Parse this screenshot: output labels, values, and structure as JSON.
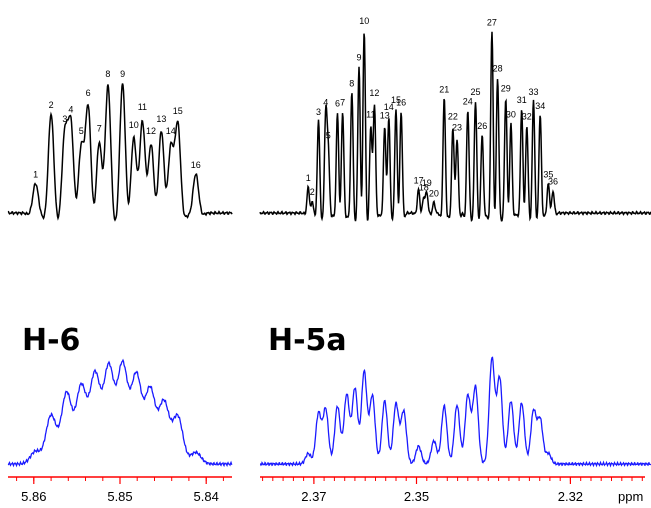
{
  "colors": {
    "top_trace": "#000000",
    "bottom_trace": "#1a1aff",
    "axis": "#ff0000"
  },
  "chart_data": [
    {
      "type": "line",
      "subtitle": "H-6",
      "xlabel": "",
      "ylabel": "",
      "x_reversed": true,
      "xlim": [
        5.863,
        5.837
      ],
      "xticks": [
        {
          "value": 5.86,
          "label": "5.86"
        },
        {
          "value": 5.85,
          "label": "5.85"
        },
        {
          "value": 5.84,
          "label": "5.84"
        }
      ],
      "series": [
        {
          "role": "resolution-enhanced",
          "peaks": [
            {
              "label": "1",
              "ppm": 5.8598,
              "height": 0.25
            },
            {
              "label": "2",
              "ppm": 5.858,
              "height": 0.84
            },
            {
              "label": "3",
              "ppm": 5.8564,
              "height": 0.72
            },
            {
              "label": "4",
              "ppm": 5.8557,
              "height": 0.8
            },
            {
              "label": "5",
              "ppm": 5.8545,
              "height": 0.62
            },
            {
              "label": "6",
              "ppm": 5.8537,
              "height": 0.94
            },
            {
              "label": "7",
              "ppm": 5.8524,
              "height": 0.64
            },
            {
              "label": "8",
              "ppm": 5.8514,
              "height": 1.1
            },
            {
              "label": "9",
              "ppm": 5.8497,
              "height": 1.1
            },
            {
              "label": "10",
              "ppm": 5.8484,
              "height": 0.67
            },
            {
              "label": "11",
              "ppm": 5.8474,
              "height": 0.82
            },
            {
              "label": "12",
              "ppm": 5.8464,
              "height": 0.62
            },
            {
              "label": "13",
              "ppm": 5.8452,
              "height": 0.72
            },
            {
              "label": "14",
              "ppm": 5.8441,
              "height": 0.62
            },
            {
              "label": "15",
              "ppm": 5.8433,
              "height": 0.79
            },
            {
              "label": "16",
              "ppm": 5.8412,
              "height": 0.33
            }
          ]
        },
        {
          "role": "experimental",
          "peaks": [
            {
              "ppm": 5.8598,
              "height": 0.12
            },
            {
              "ppm": 5.858,
              "height": 0.46
            },
            {
              "ppm": 5.8562,
              "height": 0.67
            },
            {
              "ppm": 5.8545,
              "height": 0.73
            },
            {
              "ppm": 5.8529,
              "height": 0.84
            },
            {
              "ppm": 5.8513,
              "height": 0.91
            },
            {
              "ppm": 5.8497,
              "height": 0.93
            },
            {
              "ppm": 5.8481,
              "height": 0.83
            },
            {
              "ppm": 5.8465,
              "height": 0.7
            },
            {
              "ppm": 5.8449,
              "height": 0.58
            },
            {
              "ppm": 5.8433,
              "height": 0.45
            },
            {
              "ppm": 5.8412,
              "height": 0.11
            }
          ]
        }
      ]
    },
    {
      "type": "line",
      "subtitle": "H-5a",
      "xlabel": "ppm",
      "ylabel": "",
      "x_reversed": true,
      "xlim": [
        2.3805,
        2.3043
      ],
      "xticks": [
        {
          "value": 2.37,
          "label": "2.37"
        },
        {
          "value": 2.35,
          "label": "2.35"
        },
        {
          "value": 2.32,
          "label": "2.32"
        }
      ],
      "series": [
        {
          "role": "resolution-enhanced",
          "peaks": [
            {
              "label": "1",
              "ppm": 2.3711,
              "height": 0.22
            },
            {
              "label": "2",
              "ppm": 2.3703,
              "height": 0.1
            },
            {
              "label": "3",
              "ppm": 2.3691,
              "height": 0.78
            },
            {
              "label": "4",
              "ppm": 2.3677,
              "height": 0.86
            },
            {
              "label": "5",
              "ppm": 2.3672,
              "height": 0.58
            },
            {
              "label": "6",
              "ppm": 2.3654,
              "height": 0.85
            },
            {
              "label": "7",
              "ppm": 2.3644,
              "height": 0.86
            },
            {
              "label": "8",
              "ppm": 2.3626,
              "height": 1.02
            },
            {
              "label": "9",
              "ppm": 2.3612,
              "height": 1.24
            },
            {
              "label": "10",
              "ppm": 2.3602,
              "height": 1.55
            },
            {
              "label": "11",
              "ppm": 2.3589,
              "height": 0.76
            },
            {
              "label": "12",
              "ppm": 2.3582,
              "height": 0.94
            },
            {
              "label": "13",
              "ppm": 2.3562,
              "height": 0.75
            },
            {
              "label": "14",
              "ppm": 2.3554,
              "height": 0.82
            },
            {
              "label": "15",
              "ppm": 2.354,
              "height": 0.88
            },
            {
              "label": "16",
              "ppm": 2.353,
              "height": 0.86
            },
            {
              "label": "17",
              "ppm": 2.3496,
              "height": 0.2
            },
            {
              "label": "18",
              "ppm": 2.3486,
              "height": 0.14
            },
            {
              "label": "19",
              "ppm": 2.348,
              "height": 0.18
            },
            {
              "label": "20",
              "ppm": 2.3466,
              "height": 0.09
            },
            {
              "label": "21",
              "ppm": 2.3446,
              "height": 0.97
            },
            {
              "label": "22",
              "ppm": 2.3429,
              "height": 0.74
            },
            {
              "label": "23",
              "ppm": 2.3421,
              "height": 0.65
            },
            {
              "label": "24",
              "ppm": 2.34,
              "height": 0.87
            },
            {
              "label": "25",
              "ppm": 2.3385,
              "height": 0.95
            },
            {
              "label": "26",
              "ppm": 2.3372,
              "height": 0.66
            },
            {
              "label": "27",
              "ppm": 2.3353,
              "height": 1.54
            },
            {
              "label": "28",
              "ppm": 2.3342,
              "height": 1.15
            },
            {
              "label": "29",
              "ppm": 2.3326,
              "height": 0.98
            },
            {
              "label": "30",
              "ppm": 2.3316,
              "height": 0.76
            },
            {
              "label": "31",
              "ppm": 2.3295,
              "height": 0.88
            },
            {
              "label": "32",
              "ppm": 2.3285,
              "height": 0.74
            },
            {
              "label": "33",
              "ppm": 2.3272,
              "height": 0.95
            },
            {
              "label": "34",
              "ppm": 2.3259,
              "height": 0.83
            },
            {
              "label": "35",
              "ppm": 2.3243,
              "height": 0.25
            },
            {
              "label": "36",
              "ppm": 2.3234,
              "height": 0.19
            }
          ]
        },
        {
          "role": "experimental",
          "peaks": [
            {
              "ppm": 2.3711,
              "height": 0.1
            },
            {
              "ppm": 2.3691,
              "height": 0.48
            },
            {
              "ppm": 2.3677,
              "height": 0.52
            },
            {
              "ppm": 2.3654,
              "height": 0.55
            },
            {
              "ppm": 2.3636,
              "height": 0.66
            },
            {
              "ppm": 2.362,
              "height": 0.72
            },
            {
              "ppm": 2.3602,
              "height": 0.88
            },
            {
              "ppm": 2.3586,
              "height": 0.65
            },
            {
              "ppm": 2.3562,
              "height": 0.6
            },
            {
              "ppm": 2.354,
              "height": 0.57
            },
            {
              "ppm": 2.3525,
              "height": 0.5
            },
            {
              "ppm": 2.3496,
              "height": 0.17
            },
            {
              "ppm": 2.3466,
              "height": 0.22
            },
            {
              "ppm": 2.3446,
              "height": 0.55
            },
            {
              "ppm": 2.3421,
              "height": 0.56
            },
            {
              "ppm": 2.34,
              "height": 0.65
            },
            {
              "ppm": 2.3385,
              "height": 0.73
            },
            {
              "ppm": 2.3353,
              "height": 1.0
            },
            {
              "ppm": 2.3338,
              "height": 0.82
            },
            {
              "ppm": 2.3316,
              "height": 0.6
            },
            {
              "ppm": 2.3295,
              "height": 0.58
            },
            {
              "ppm": 2.3272,
              "height": 0.5
            },
            {
              "ppm": 2.3259,
              "height": 0.42
            },
            {
              "ppm": 2.3243,
              "height": 0.1
            }
          ]
        }
      ]
    }
  ]
}
